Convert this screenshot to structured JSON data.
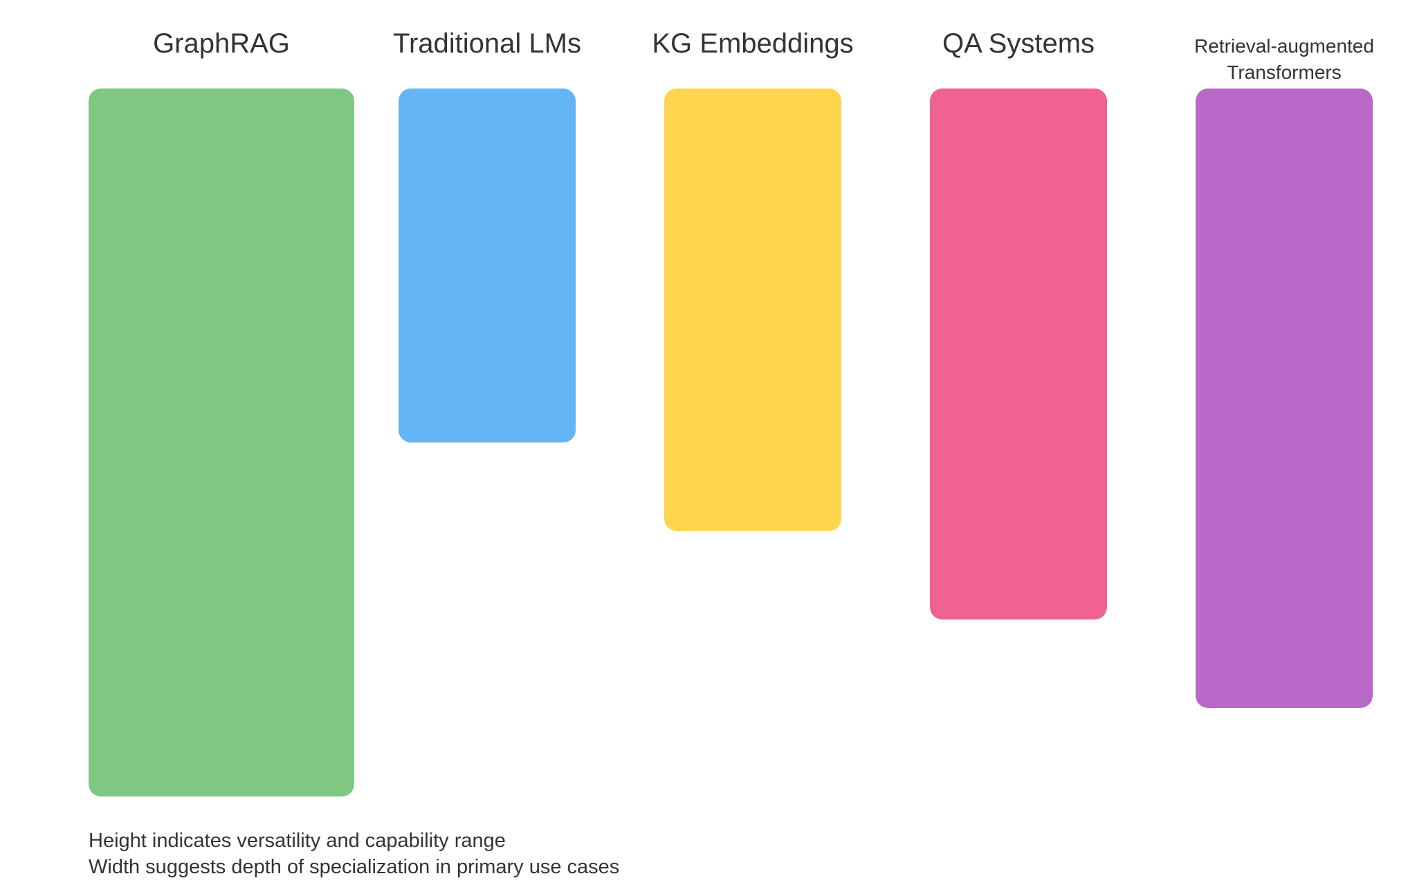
{
  "chart_data": {
    "type": "bar",
    "categories": [
      "GraphRAG",
      "Traditional LMs",
      "KG Embeddings",
      "QA Systems",
      "Retrieval-augmented Transformers"
    ],
    "series": [
      {
        "heights": [
          8,
          4,
          5,
          6,
          7
        ],
        "widths": [
          3,
          2,
          2,
          2,
          2
        ],
        "colors": [
          "#81c784",
          "#64b5f6",
          "#ffd54f",
          "#f06292",
          "#ba68c8"
        ]
      }
    ],
    "value_scale": {
      "height_unit_max": 8,
      "width_unit_max": 3
    },
    "notes": [
      "Height indicates versatility and capability range",
      "Width suggests depth of specialization in primary use cases"
    ]
  }
}
